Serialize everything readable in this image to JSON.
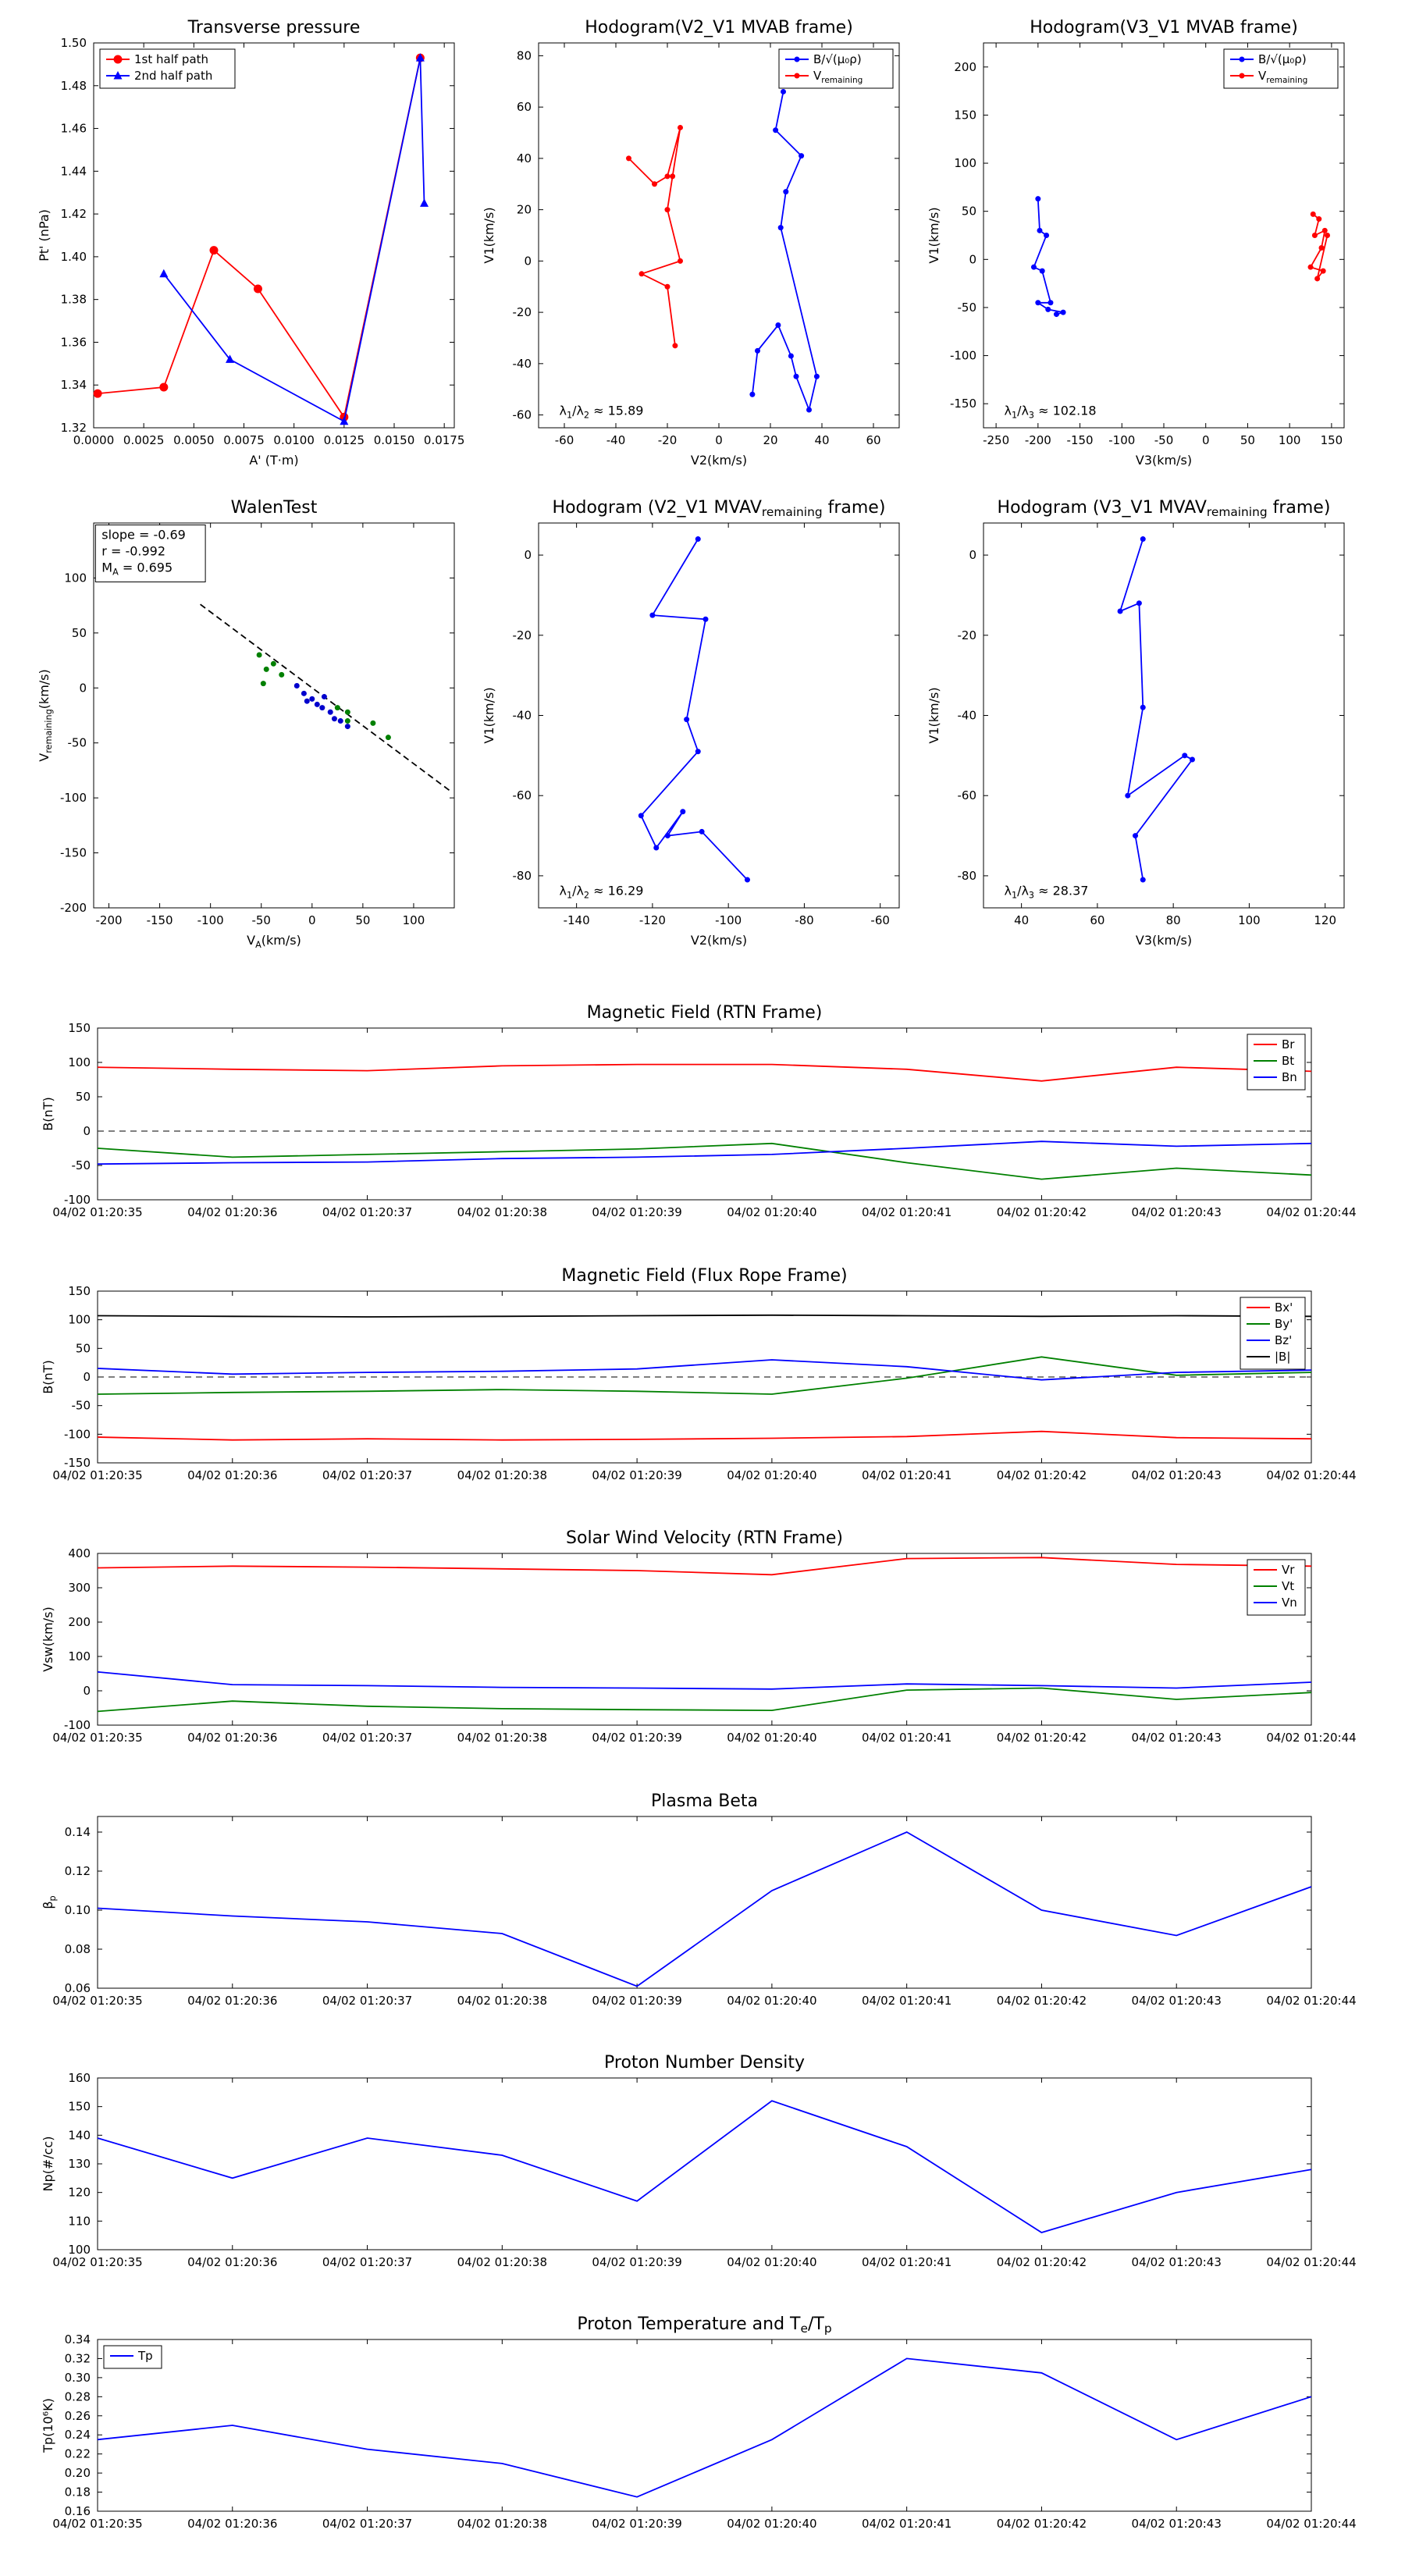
{
  "figure": {
    "background": "#ffffff"
  },
  "time_labels": [
    "04/02 01:20:35",
    "04/02 01:20:36",
    "04/02 01:20:37",
    "04/02 01:20:38",
    "04/02 01:20:39",
    "04/02 01:20:40",
    "04/02 01:20:41",
    "04/02 01:20:42",
    "04/02 01:20:43",
    "04/02 01:20:44"
  ],
  "chart_data": [
    {
      "id": "transverse_pressure",
      "type": "line",
      "title": "Transverse pressure",
      "xlabel": "A' (T·m)",
      "ylabel": "Pt' (nPa)",
      "xlim": [
        0.0,
        0.018
      ],
      "ylim": [
        1.32,
        1.5
      ],
      "xticks": [
        0.0,
        0.0025,
        0.005,
        0.0075,
        0.01,
        0.0125,
        0.015,
        0.0175
      ],
      "xtick_labels": [
        "0.0000",
        "0.0025",
        "0.0050",
        "0.0075",
        "0.0100",
        "0.0125",
        "0.0150",
        "0.0175"
      ],
      "yticks": [
        1.32,
        1.34,
        1.36,
        1.38,
        1.4,
        1.42,
        1.44,
        1.46,
        1.48,
        1.5
      ],
      "ytick_labels": [
        "1.32",
        "1.34",
        "1.36",
        "1.38",
        "1.40",
        "1.42",
        "1.44",
        "1.46",
        "1.48",
        "1.50"
      ],
      "legend": {
        "loc": "ul"
      },
      "series": [
        {
          "name": "1st half path",
          "color": "#ff0000",
          "marker": "circle",
          "x": [
            0.0002,
            0.0035,
            0.006,
            0.0082,
            0.0125,
            0.0163
          ],
          "y": [
            1.336,
            1.339,
            1.403,
            1.385,
            1.325,
            1.493
          ]
        },
        {
          "name": "2nd half path",
          "color": "#0000ff",
          "marker": "triangle",
          "x": [
            0.0035,
            0.0068,
            0.0125,
            0.0163,
            0.0165
          ],
          "y": [
            1.392,
            1.352,
            1.323,
            1.493,
            1.425
          ]
        }
      ]
    },
    {
      "id": "hodogram_v2v1_mvab",
      "type": "line",
      "title": "Hodogram(V2_V1 MVAB frame)",
      "xlabel": "V2(km/s)",
      "ylabel": "V1(km/s)",
      "xlim": [
        -70,
        70
      ],
      "ylim": [
        -65,
        85
      ],
      "xticks": [
        -60,
        -40,
        -20,
        0,
        20,
        40,
        60
      ],
      "yticks": [
        -60,
        -40,
        -20,
        0,
        20,
        40,
        60,
        80
      ],
      "legend": {
        "loc": "ur"
      },
      "annotations": [
        {
          "fx": 0.04,
          "fy": 0.93,
          "lines": [
            "λ_{1}/λ_{2} ≈ 15.89"
          ]
        }
      ],
      "series": [
        {
          "name": "B/√(μ₀ρ)",
          "color": "#0000ff",
          "marker": "dot",
          "x": [
            25,
            22,
            32,
            26,
            24,
            38,
            35,
            30,
            28,
            23,
            15,
            13
          ],
          "y": [
            66,
            51,
            41,
            27,
            13,
            -45,
            -58,
            -45,
            -37,
            -25,
            -35,
            -52
          ]
        },
        {
          "name": "V_{remaining}",
          "color": "#ff0000",
          "marker": "dot",
          "x": [
            -35,
            -25,
            -20,
            -15,
            -18,
            -20,
            -15,
            -30,
            -20,
            -17
          ],
          "y": [
            40,
            30,
            33,
            52,
            33,
            20,
            0,
            -5,
            -10,
            -33
          ]
        }
      ]
    },
    {
      "id": "hodogram_v3v1_mvab",
      "type": "line",
      "title": "Hodogram(V3_V1 MVAB frame)",
      "xlabel": "V3(km/s)",
      "ylabel": "V1(km/s)",
      "xlim": [
        -265,
        165
      ],
      "ylim": [
        -175,
        225
      ],
      "xticks": [
        -250,
        -200,
        -150,
        -100,
        -50,
        0,
        50,
        100,
        150
      ],
      "yticks": [
        -150,
        -100,
        -50,
        0,
        50,
        100,
        150,
        200
      ],
      "legend": {
        "loc": "ur"
      },
      "annotations": [
        {
          "fx": 0.04,
          "fy": 0.93,
          "lines": [
            "λ_{1}/λ_{3} ≈ 102.18"
          ]
        }
      ],
      "series": [
        {
          "name": "B/√(μ₀ρ)",
          "color": "#0000ff",
          "marker": "dot",
          "x": [
            -200,
            -198,
            -190,
            -205,
            -195,
            -185,
            -200,
            -188,
            -170,
            -178
          ],
          "y": [
            63,
            30,
            25,
            -8,
            -12,
            -45,
            -45,
            -52,
            -55,
            -57
          ]
        },
        {
          "name": "V_{remaining}",
          "color": "#ff0000",
          "marker": "dot",
          "x": [
            128,
            135,
            130,
            142,
            138,
            125,
            140,
            133,
            145
          ],
          "y": [
            47,
            42,
            25,
            30,
            12,
            -8,
            -12,
            -20,
            25
          ]
        }
      ]
    },
    {
      "id": "walen_test",
      "type": "scatter",
      "title": "WalenTest",
      "xlabel": "V_{A}(km/s)",
      "ylabel": "V_{remaining}(km/s)",
      "xlim": [
        -215,
        140
      ],
      "ylim": [
        -200,
        150
      ],
      "xticks": [
        -200,
        -150,
        -100,
        -50,
        0,
        50,
        100
      ],
      "yticks": [
        -200,
        -150,
        -100,
        -50,
        0,
        50,
        100
      ],
      "annotations": [
        {
          "fx": 0.005,
          "fy": 0.005,
          "box": true,
          "lines": [
            "slope = -0.69",
            "r = -0.992",
            "M_{A} = 0.695"
          ]
        }
      ],
      "series": [
        {
          "color": "#8b0000",
          "marker": "square",
          "line": "none",
          "x": [
            -209,
            -197
          ],
          "y": [
            143,
            131
          ]
        },
        {
          "color": "#000000",
          "marker": "none",
          "line": "dashed",
          "x": [
            -110,
            135
          ],
          "y": [
            76,
            -93
          ]
        },
        {
          "color": "#008000",
          "marker": "dot",
          "line": "none",
          "x": [
            -52,
            -45,
            -38,
            -30,
            -48,
            25,
            35,
            35,
            60,
            75
          ],
          "y": [
            30,
            17,
            22,
            12,
            4,
            -18,
            -22,
            -30,
            -32,
            -45
          ]
        },
        {
          "color": "#0000cd",
          "marker": "dot",
          "line": "none",
          "x": [
            -15,
            -8,
            -5,
            0,
            5,
            10,
            12,
            18,
            22,
            28,
            35
          ],
          "y": [
            2,
            -5,
            -12,
            -10,
            -15,
            -18,
            -8,
            -22,
            -28,
            -30,
            -35
          ]
        }
      ]
    },
    {
      "id": "hodogram_v2v1_mvav",
      "type": "line",
      "title": "Hodogram (V2_V1 MVAV_{remaining} frame)",
      "xlabel": "V2(km/s)",
      "ylabel": "V1(km/s)",
      "xlim": [
        -150,
        -55
      ],
      "ylim": [
        -88,
        8
      ],
      "xticks": [
        -140,
        -120,
        -100,
        -80,
        -60
      ],
      "yticks": [
        -80,
        -60,
        -40,
        -20,
        0
      ],
      "annotations": [
        {
          "fx": 0.04,
          "fy": 0.93,
          "lines": [
            "λ_{1}/λ_{2} ≈ 16.29"
          ]
        }
      ],
      "series": [
        {
          "color": "#0000ff",
          "marker": "dot",
          "x": [
            -108,
            -120,
            -106,
            -111,
            -108,
            -123,
            -119,
            -112,
            -116,
            -107,
            -95
          ],
          "y": [
            4,
            -15,
            -16,
            -41,
            -49,
            -65,
            -73,
            -64,
            -70,
            -69,
            -81
          ]
        }
      ]
    },
    {
      "id": "hodogram_v3v1_mvav",
      "type": "line",
      "title": "Hodogram (V3_V1 MVAV_{remaining} frame)",
      "xlabel": "V3(km/s)",
      "ylabel": "V1(km/s)",
      "xlim": [
        30,
        125
      ],
      "ylim": [
        -88,
        8
      ],
      "xticks": [
        40,
        60,
        80,
        100,
        120
      ],
      "yticks": [
        -80,
        -60,
        -40,
        -20,
        0
      ],
      "annotations": [
        {
          "fx": 0.04,
          "fy": 0.93,
          "lines": [
            "λ_{1}/λ_{3} ≈ 28.37"
          ]
        }
      ],
      "series": [
        {
          "color": "#0000ff",
          "marker": "dot",
          "x": [
            72,
            66,
            71,
            72,
            68,
            83,
            85,
            70,
            72
          ],
          "y": [
            4,
            -14,
            -12,
            -38,
            -60,
            -50,
            -51,
            -70,
            -81
          ]
        }
      ]
    },
    {
      "id": "mag_rtn",
      "type": "line",
      "title": "Magnetic Field (RTN Frame)",
      "ylabel": "B(nT)",
      "xlim": [
        0,
        9
      ],
      "ylim": [
        -100,
        150
      ],
      "xticks": [
        0,
        1,
        2,
        3,
        4,
        5,
        6,
        7,
        8,
        9
      ],
      "xtick_labels_ref": "time_labels",
      "yticks": [
        -100,
        -50,
        0,
        50,
        100,
        150
      ],
      "hlines": [
        {
          "y": 0
        }
      ],
      "legend": {
        "loc": "ur"
      },
      "series": [
        {
          "name": "Br",
          "color": "#ff0000",
          "y": [
            93,
            90,
            88,
            95,
            97,
            97,
            90,
            73,
            93,
            87
          ]
        },
        {
          "name": "Bt",
          "color": "#008000",
          "y": [
            -25,
            -38,
            -34,
            -30,
            -26,
            -18,
            -46,
            -70,
            -54,
            -64
          ]
        },
        {
          "name": "Bn",
          "color": "#0000ff",
          "y": [
            -48,
            -46,
            -45,
            -40,
            -38,
            -34,
            -25,
            -15,
            -22,
            -18
          ]
        }
      ]
    },
    {
      "id": "mag_fluxrope",
      "type": "line",
      "title": "Magnetic Field (Flux Rope Frame)",
      "ylabel": "B(nT)",
      "xlim": [
        0,
        9
      ],
      "ylim": [
        -150,
        150
      ],
      "xticks": [
        0,
        1,
        2,
        3,
        4,
        5,
        6,
        7,
        8,
        9
      ],
      "xtick_labels_ref": "time_labels",
      "yticks": [
        -150,
        -100,
        -50,
        0,
        50,
        100,
        150
      ],
      "hlines": [
        {
          "y": 0
        }
      ],
      "legend": {
        "loc": "ur"
      },
      "series": [
        {
          "name": "Bx'",
          "color": "#ff0000",
          "y": [
            -105,
            -110,
            -108,
            -110,
            -109,
            -107,
            -104,
            -95,
            -106,
            -108
          ]
        },
        {
          "name": "By'",
          "color": "#008000",
          "y": [
            -30,
            -27,
            -25,
            -22,
            -25,
            -30,
            -2,
            35,
            3,
            8
          ]
        },
        {
          "name": "Bz'",
          "color": "#0000ff",
          "y": [
            15,
            5,
            8,
            10,
            14,
            30,
            18,
            -5,
            8,
            12
          ]
        },
        {
          "name": "|B|",
          "color": "#000000",
          "y": [
            107,
            106,
            105,
            106,
            107,
            108,
            107,
            106,
            107,
            106
          ]
        }
      ]
    },
    {
      "id": "sw_velocity",
      "type": "line",
      "title": "Solar Wind Velocity (RTN Frame)",
      "ylabel": "Vsw(km/s)",
      "xlim": [
        0,
        9
      ],
      "ylim": [
        -100,
        400
      ],
      "xticks": [
        0,
        1,
        2,
        3,
        4,
        5,
        6,
        7,
        8,
        9
      ],
      "xtick_labels_ref": "time_labels",
      "yticks": [
        -100,
        0,
        100,
        200,
        300,
        400
      ],
      "legend": {
        "loc": "ur"
      },
      "series": [
        {
          "name": "Vr",
          "color": "#ff0000",
          "y": [
            358,
            363,
            360,
            355,
            350,
            338,
            385,
            388,
            368,
            363
          ]
        },
        {
          "name": "Vt",
          "color": "#008000",
          "y": [
            -60,
            -30,
            -45,
            -52,
            -55,
            -57,
            2,
            8,
            -25,
            -5
          ]
        },
        {
          "name": "Vn",
          "color": "#0000ff",
          "y": [
            55,
            18,
            15,
            10,
            8,
            5,
            20,
            15,
            8,
            25
          ]
        }
      ]
    },
    {
      "id": "plasma_beta",
      "type": "line",
      "title": "Plasma Beta",
      "ylabel": "β_{p}",
      "xlim": [
        0,
        9
      ],
      "ylim": [
        0.06,
        0.148
      ],
      "xticks": [
        0,
        1,
        2,
        3,
        4,
        5,
        6,
        7,
        8,
        9
      ],
      "xtick_labels_ref": "time_labels",
      "yticks": [
        0.06,
        0.08,
        0.1,
        0.12,
        0.14
      ],
      "ytick_labels": [
        "0.06",
        "0.08",
        "0.10",
        "0.12",
        "0.14"
      ],
      "series": [
        {
          "color": "#0000ff",
          "y": [
            0.101,
            0.097,
            0.094,
            0.088,
            0.061,
            0.11,
            0.14,
            0.1,
            0.087,
            0.112
          ]
        }
      ]
    },
    {
      "id": "proton_density",
      "type": "line",
      "title": "Proton Number Density",
      "ylabel": "Np(#/cc)",
      "xlim": [
        0,
        9
      ],
      "ylim": [
        100,
        160
      ],
      "xticks": [
        0,
        1,
        2,
        3,
        4,
        5,
        6,
        7,
        8,
        9
      ],
      "xtick_labels_ref": "time_labels",
      "yticks": [
        100,
        110,
        120,
        130,
        140,
        150,
        160
      ],
      "series": [
        {
          "color": "#0000ff",
          "y": [
            139,
            125,
            139,
            133,
            117,
            152,
            136,
            106,
            120,
            128
          ]
        }
      ]
    },
    {
      "id": "proton_temp",
      "type": "line",
      "title": "Proton Temperature and T_{e}/T_{p}",
      "ylabel": "Tp(10⁶K)",
      "xlim": [
        0,
        9
      ],
      "ylim": [
        0.16,
        0.34
      ],
      "xticks": [
        0,
        1,
        2,
        3,
        4,
        5,
        6,
        7,
        8,
        9
      ],
      "xtick_labels_ref": "time_labels",
      "yticks": [
        0.16,
        0.18,
        0.2,
        0.22,
        0.24,
        0.26,
        0.28,
        0.3,
        0.32,
        0.34
      ],
      "ytick_labels": [
        "0.16",
        "0.18",
        "0.20",
        "0.22",
        "0.24",
        "0.26",
        "0.28",
        "0.30",
        "0.32",
        "0.34"
      ],
      "legend": {
        "loc": "ul"
      },
      "series": [
        {
          "name": "Tp",
          "color": "#0000ff",
          "y": [
            0.235,
            0.25,
            0.225,
            0.21,
            0.175,
            0.235,
            0.32,
            0.305,
            0.235,
            0.28
          ]
        }
      ]
    }
  ]
}
